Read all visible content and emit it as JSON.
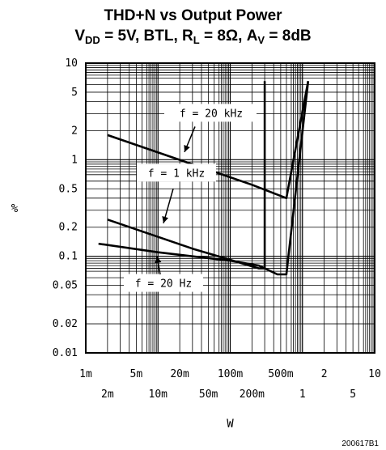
{
  "chart_data": {
    "type": "line",
    "title_line1": "THD+N vs Output Power",
    "title_line2": {
      "t1": "V",
      "s1": "DD",
      "t2": " = 5V, BTL, R",
      "s2": "L",
      "t3": " = 8Ω, A",
      "s3": "V",
      "t4": " = 8dB"
    },
    "xlabel": "W",
    "ylabel": "%",
    "x_scale": "log",
    "y_scale": "log",
    "xlim": [
      0.001,
      10
    ],
    "ylim": [
      0.01,
      10
    ],
    "grid": true,
    "x_ticks_upper": [
      {
        "value": 0.001,
        "label": "1m"
      },
      {
        "value": 0.005,
        "label": "5m"
      },
      {
        "value": 0.02,
        "label": "20m"
      },
      {
        "value": 0.1,
        "label": "100m"
      },
      {
        "value": 0.5,
        "label": "500m"
      },
      {
        "value": 2,
        "label": "2"
      },
      {
        "value": 10,
        "label": "10"
      }
    ],
    "x_ticks_lower": [
      {
        "value": 0.002,
        "label": "2m"
      },
      {
        "value": 0.01,
        "label": "10m"
      },
      {
        "value": 0.05,
        "label": "50m"
      },
      {
        "value": 0.2,
        "label": "200m"
      },
      {
        "value": 1,
        "label": "1"
      },
      {
        "value": 5,
        "label": "5"
      }
    ],
    "y_ticks": [
      {
        "value": 10,
        "label": "10"
      },
      {
        "value": 5,
        "label": "5"
      },
      {
        "value": 2,
        "label": "2"
      },
      {
        "value": 1,
        "label": "1"
      },
      {
        "value": 0.5,
        "label": "0.5"
      },
      {
        "value": 0.2,
        "label": "0.2"
      },
      {
        "value": 0.1,
        "label": "0.1"
      },
      {
        "value": 0.05,
        "label": "0.05"
      },
      {
        "value": 0.02,
        "label": "0.02"
      },
      {
        "value": 0.01,
        "label": "0.01"
      }
    ],
    "series": [
      {
        "name": "f = 20 kHz",
        "x": [
          0.002,
          0.2,
          0.6,
          1.2
        ],
        "y": [
          1.8,
          0.55,
          0.4,
          6.5
        ]
      },
      {
        "name": "f = 1 kHz",
        "x": [
          0.002,
          0.03,
          0.25,
          0.3,
          0.3,
          0.3
        ],
        "y": [
          0.24,
          0.12,
          0.075,
          0.075,
          2,
          6.5
        ]
      },
      {
        "name": "f = 20 Hz",
        "x": [
          0.0015,
          0.01,
          0.1,
          0.25,
          0.45,
          0.6,
          1.2
        ],
        "y": [
          0.135,
          0.11,
          0.09,
          0.08,
          0.065,
          0.065,
          6.5
        ]
      }
    ],
    "footnote": "200617B1"
  }
}
